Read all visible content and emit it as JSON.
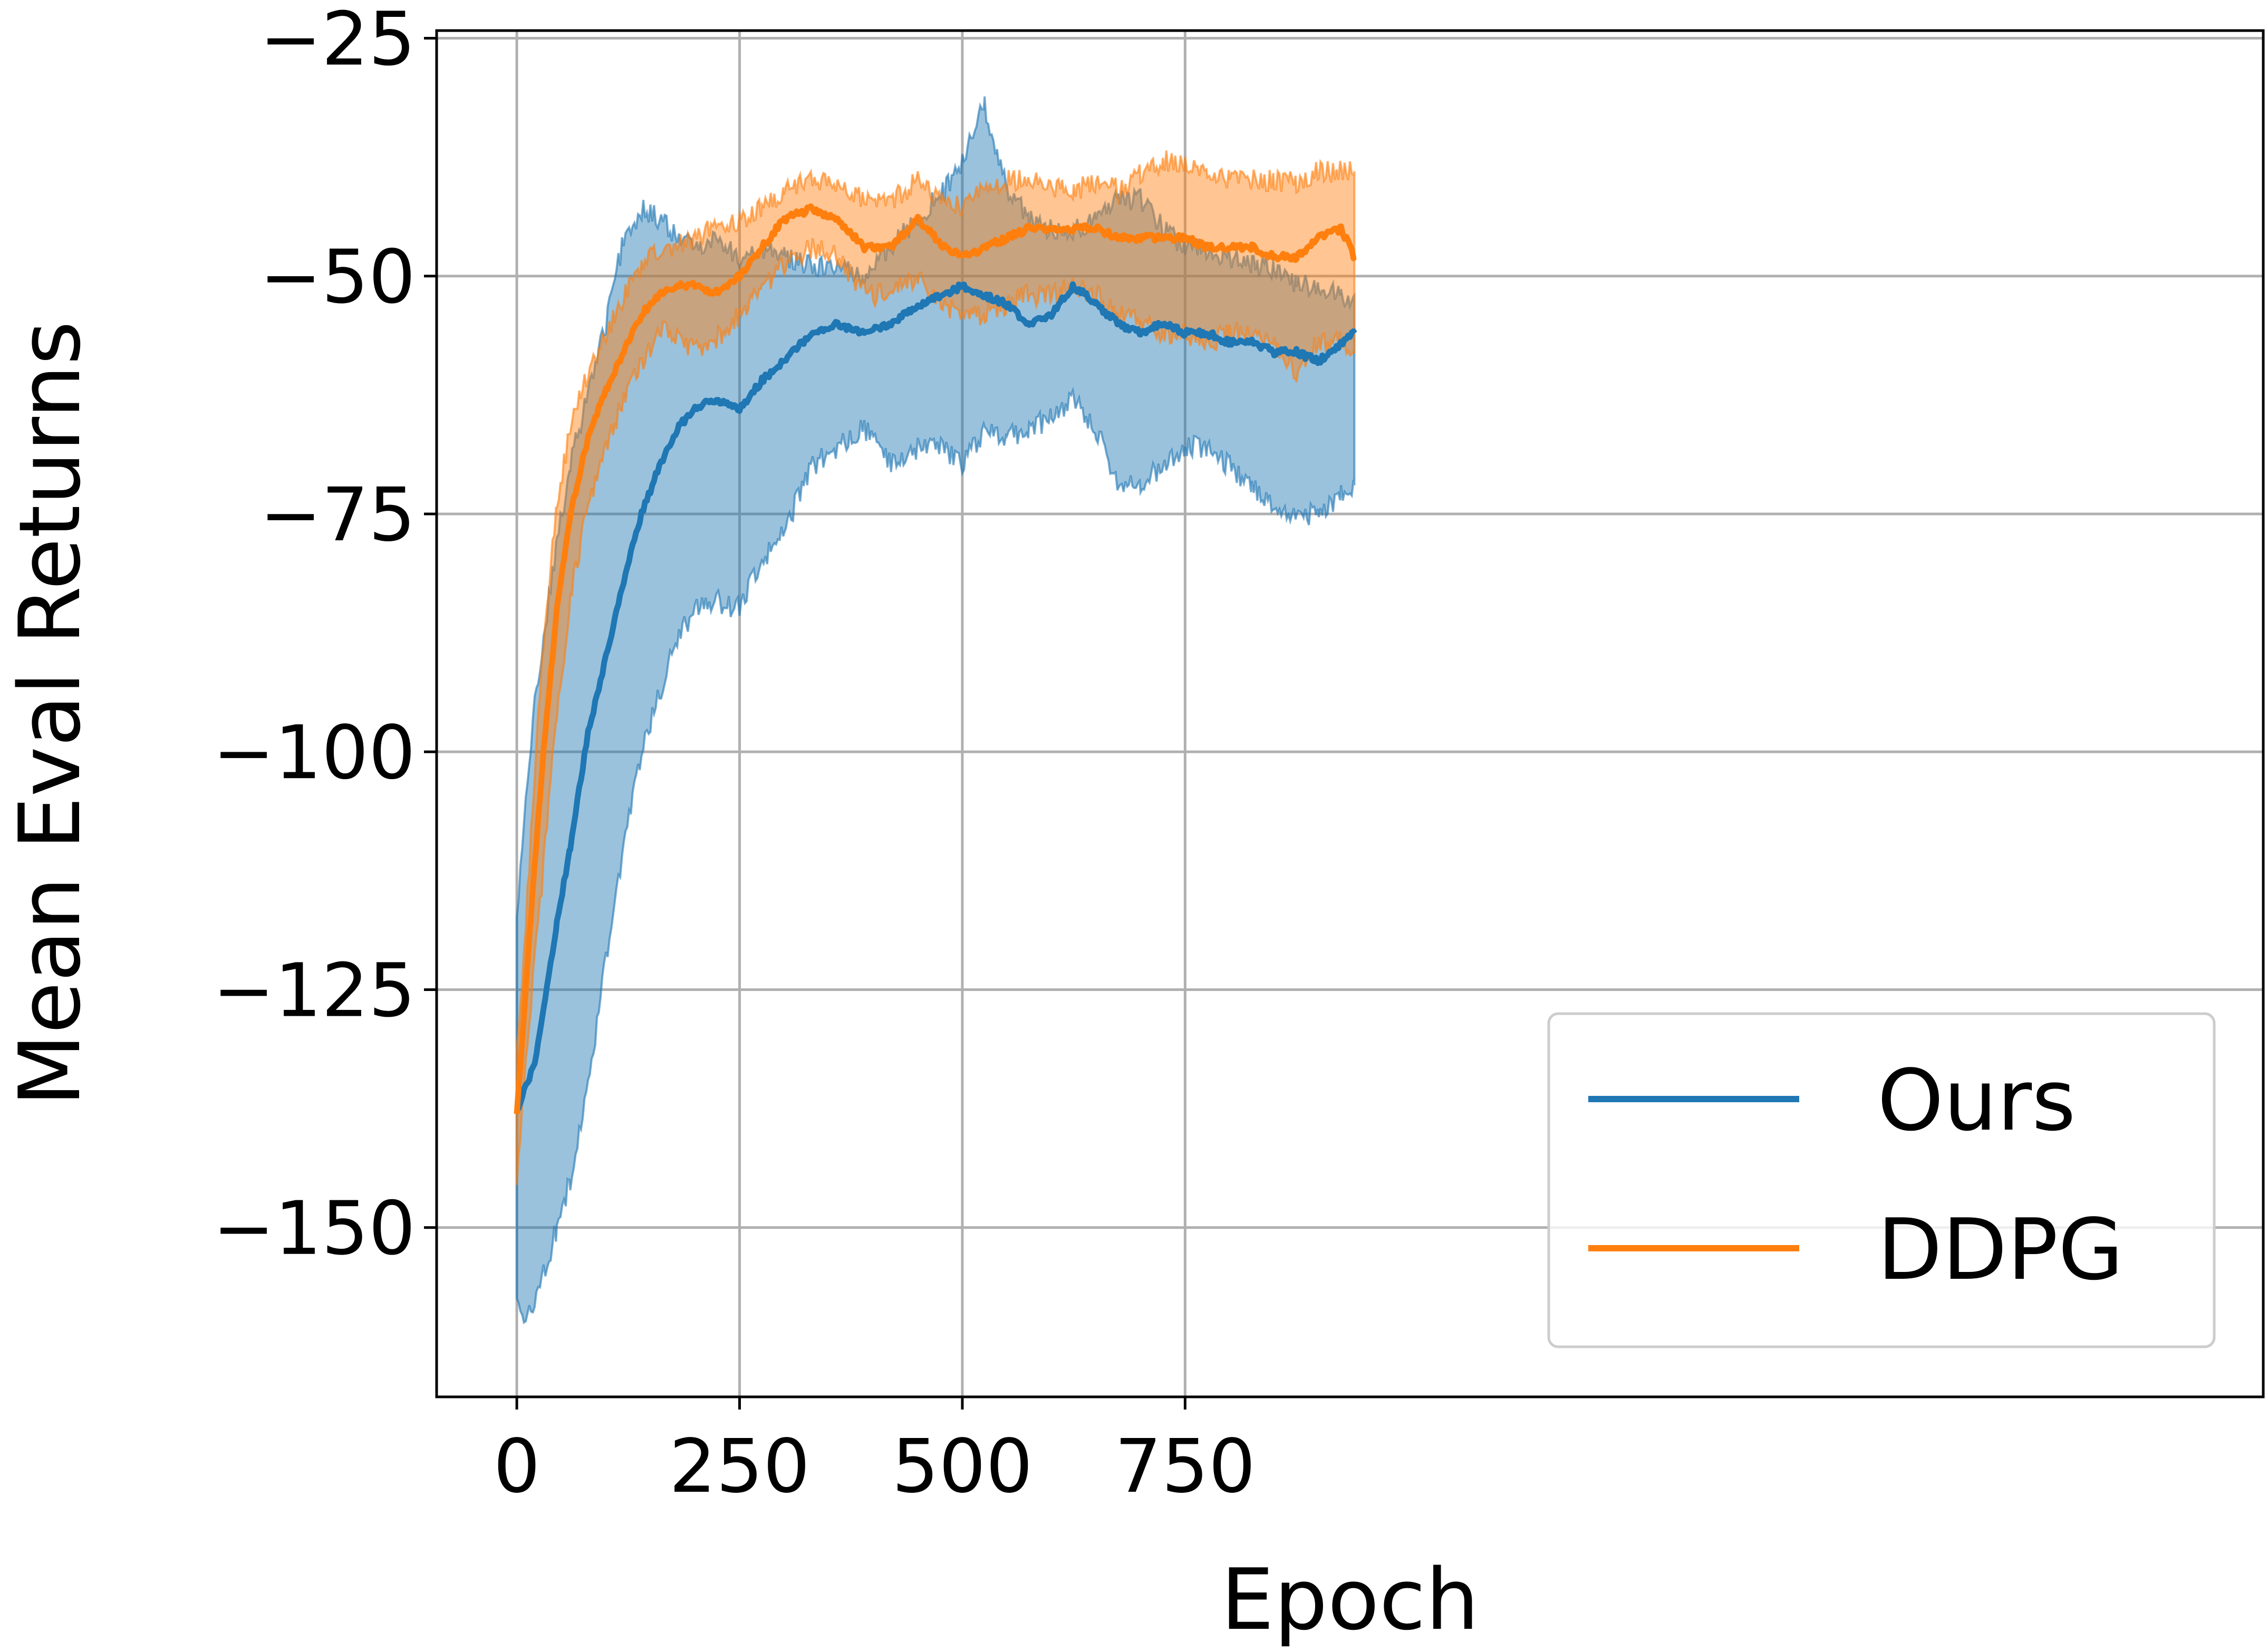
{
  "chart_data": {
    "type": "line",
    "xlabel": "Epoch",
    "ylabel": "Mean Eval Returns",
    "xlim": [
      -90,
      1960
    ],
    "ylim": [
      -167.8,
      -24.2
    ],
    "xticks": [
      0,
      250,
      500,
      750
    ],
    "xtick_labels": [
      "0",
      "250",
      "500",
      "750"
    ],
    "yticks": [
      -150,
      -125,
      -100,
      -75,
      -50,
      -25
    ],
    "ytick_labels": [
      "−150",
      "−125",
      "−100",
      "−75",
      "−50",
      "−25"
    ],
    "grid": true,
    "legend_position": "lower-right",
    "series": [
      {
        "name": "Ours",
        "color": "#1f77b4",
        "x": [
          0,
          10,
          20,
          30,
          45,
          60,
          80,
          100,
          120,
          140,
          160,
          180,
          200,
          220,
          250,
          275,
          300,
          330,
          360,
          390,
          420,
          450,
          480,
          500,
          525,
          550,
          575,
          600,
          625,
          650,
          675,
          700,
          725,
          750,
          775,
          800,
          825,
          850,
          875,
          900,
          925,
          940
        ],
        "mean": [
          -138,
          -135,
          -133,
          -127,
          -118,
          -110,
          -98,
          -90,
          -82,
          -75,
          -70,
          -66,
          -64,
          -63,
          -64,
          -61,
          -59,
          -56,
          -55,
          -56,
          -55,
          -53,
          -52,
          -51,
          -52,
          -53,
          -55,
          -54,
          -51,
          -53,
          -55,
          -56,
          -55,
          -56,
          -56,
          -57,
          -57,
          -58,
          -58,
          -59,
          -57,
          -56
        ],
        "upper": [
          -118,
          -105,
          -95,
          -88,
          -78,
          -70,
          -62,
          -55,
          -46,
          -43,
          -44,
          -46,
          -47,
          -46,
          -48,
          -47,
          -48,
          -49,
          -49,
          -50,
          -47,
          -44,
          -41,
          -38,
          -32,
          -41,
          -44,
          -45,
          -45,
          -44,
          -42,
          -42,
          -45,
          -47,
          -47,
          -48,
          -49,
          -49,
          -51,
          -51,
          -52,
          -52
        ],
        "lower": [
          -158,
          -160,
          -158,
          -155,
          -150,
          -145,
          -135,
          -122,
          -110,
          -100,
          -94,
          -88,
          -85,
          -84,
          -85,
          -80,
          -77,
          -70,
          -68,
          -66,
          -70,
          -68,
          -68,
          -70,
          -66,
          -67,
          -66,
          -65,
          -63,
          -66,
          -72,
          -72,
          -70,
          -68,
          -68,
          -70,
          -72,
          -74,
          -75,
          -75,
          -73,
          -72
        ]
      },
      {
        "name": "DDPG",
        "color": "#ff7f0e",
        "x": [
          0,
          10,
          20,
          30,
          45,
          60,
          80,
          100,
          120,
          140,
          160,
          180,
          200,
          220,
          250,
          275,
          300,
          330,
          360,
          390,
          420,
          450,
          480,
          500,
          525,
          550,
          575,
          600,
          625,
          650,
          675,
          700,
          725,
          750,
          775,
          800,
          825,
          850,
          875,
          900,
          925,
          940
        ],
        "mean": [
          -138,
          -125,
          -112,
          -100,
          -85,
          -75,
          -67,
          -62,
          -58,
          -54,
          -52,
          -51,
          -51,
          -52,
          -50,
          -47,
          -44,
          -43,
          -44,
          -47,
          -47,
          -44,
          -47,
          -48,
          -47,
          -46,
          -45,
          -45,
          -45,
          -45,
          -46,
          -46,
          -46,
          -46,
          -47,
          -47,
          -47,
          -48,
          -48,
          -46,
          -45,
          -48
        ],
        "upper": [
          -132,
          -118,
          -102,
          -88,
          -74,
          -66,
          -60,
          -56,
          -52,
          -49,
          -47,
          -47,
          -46,
          -45,
          -44,
          -43,
          -41,
          -40,
          -40,
          -42,
          -42,
          -40,
          -42,
          -43,
          -41,
          -40,
          -40,
          -41,
          -41,
          -40,
          -41,
          -39,
          -38,
          -38,
          -39,
          -40,
          -40,
          -40,
          -40,
          -39,
          -39,
          -39
        ],
        "lower": [
          -146,
          -132,
          -122,
          -112,
          -96,
          -84,
          -74,
          -68,
          -63,
          -59,
          -56,
          -56,
          -58,
          -57,
          -54,
          -51,
          -49,
          -47,
          -48,
          -52,
          -52,
          -50,
          -53,
          -54,
          -54,
          -53,
          -52,
          -52,
          -51,
          -52,
          -54,
          -55,
          -56,
          -56,
          -57,
          -56,
          -56,
          -57,
          -60,
          -57,
          -57,
          -58
        ]
      }
    ]
  }
}
